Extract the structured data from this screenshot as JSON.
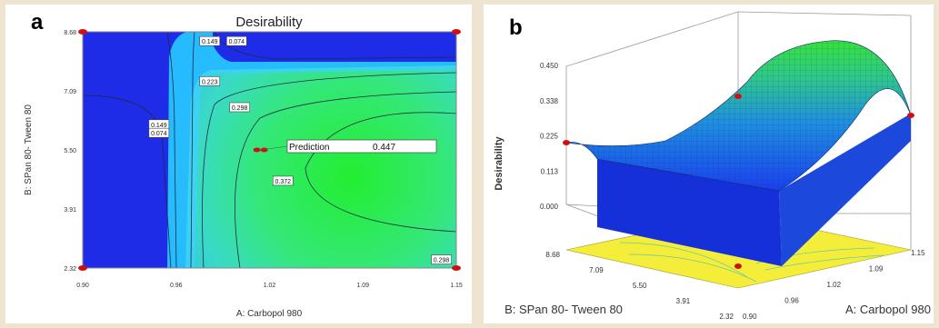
{
  "panel_a": {
    "letter": "a",
    "prediction_label": "Prediction",
    "prediction_value": "0.447"
  },
  "panel_b": {
    "letter": "b"
  },
  "chart_data": [
    {
      "type": "contour",
      "title": "Desirability",
      "xlabel": "A: Carbopol 980",
      "ylabel": "B: SPan 80- Tween 80",
      "x_ticks": [
        "0.90",
        "0.96",
        "1.02",
        "1.09",
        "1.15"
      ],
      "y_ticks": [
        "2.32",
        "3.91",
        "5.50",
        "7.09",
        "8.68"
      ],
      "xlim": [
        0.9,
        1.15
      ],
      "ylim": [
        2.32,
        8.68
      ],
      "contour_labels": [
        {
          "text": "0.149",
          "x": 0.985,
          "y": 8.43
        },
        {
          "text": "0.074",
          "x": 1.003,
          "y": 8.43
        },
        {
          "text": "0.223",
          "x": 0.985,
          "y": 7.35
        },
        {
          "text": "0.298",
          "x": 1.005,
          "y": 6.65
        },
        {
          "text": "0.149",
          "x": 0.951,
          "y": 6.19
        },
        {
          "text": "0.074",
          "x": 0.951,
          "y": 5.96
        },
        {
          "text": "0.372",
          "x": 1.034,
          "y": 4.67
        },
        {
          "text": "0.298",
          "x": 1.14,
          "y": 2.55
        }
      ],
      "prediction": {
        "x": 1.019,
        "y": 5.5,
        "value": 0.447
      }
    },
    {
      "type": "surface",
      "zlabel": "Desirability",
      "xlabel": "A: Carbopol 980",
      "ylabel": "B: SPan 80- Tween 80",
      "z_ticks": [
        "0.000",
        "0.113",
        "0.225",
        "0.338",
        "0.450"
      ],
      "x_ticks": [
        "0.90",
        "0.96",
        "1.02",
        "1.09",
        "1.15"
      ],
      "y_ticks": [
        "2.32",
        "3.91",
        "5.50",
        "7.09",
        "8.68"
      ],
      "zlim": [
        0.0,
        0.45
      ],
      "xlim": [
        0.9,
        1.15
      ],
      "ylim": [
        2.32,
        8.68
      ]
    }
  ]
}
